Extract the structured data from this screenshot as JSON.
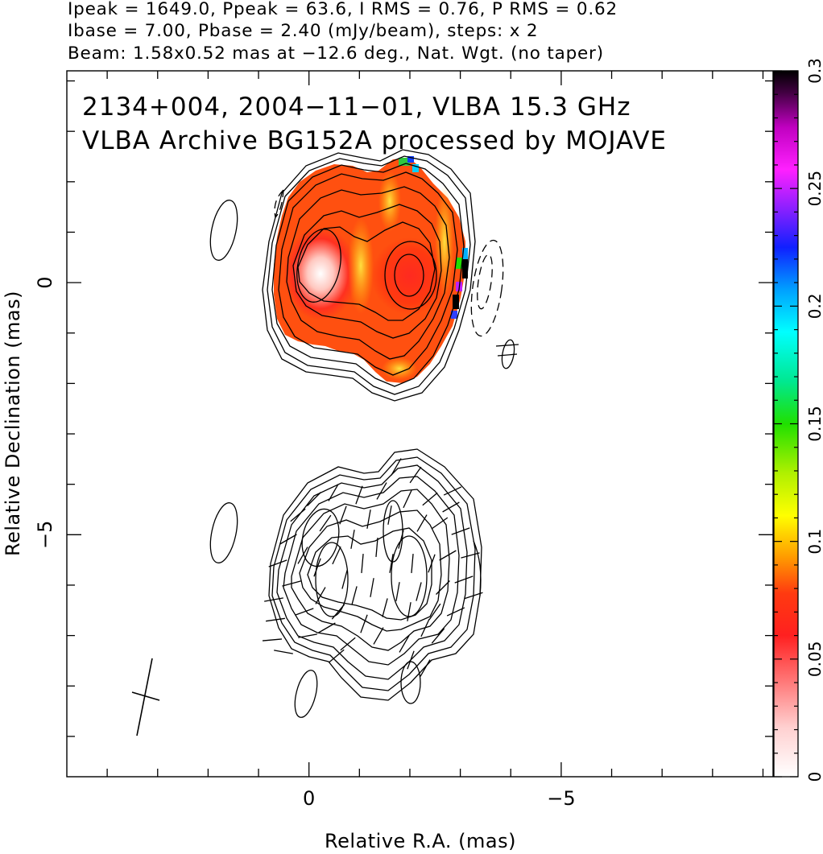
{
  "header": {
    "line1": "Ipeak = 1649.0, Ppeak = 63.6, I RMS = 0.76, P RMS = 0.62",
    "line2": "Ibase = 7.00, Pbase = 2.40 (mJy/beam), steps: x 2",
    "line3": "Beam: 1.58x0.52 mas at −12.6 deg., Nat. Wgt. (no taper)"
  },
  "chart_data": {
    "type": "heatmap",
    "title_line1": "2134+004, 2004−11−01, VLBA 15.3 GHz",
    "title_line2": "VLBA Archive BG152A processed by MOJAVE",
    "xlabel": "Relative R.A. (mas)",
    "ylabel": "Relative Declination (mas)",
    "xlim": [
      4.8,
      -9.2
    ],
    "ylim": [
      -9.8,
      4.2
    ],
    "x_ticks": [
      0,
      -5
    ],
    "x_tick_labels": [
      "0",
      "−5"
    ],
    "y_ticks": [
      0,
      -5
    ],
    "y_tick_labels": [
      "0",
      "−5"
    ],
    "colorbar": {
      "range": [
        0,
        0.3
      ],
      "ticks": [
        0,
        0.05,
        0.1,
        0.15,
        0.2,
        0.25,
        0.3
      ],
      "tick_labels": [
        "0",
        "0.05",
        "0.1",
        "0.15",
        "0.2",
        "0.25",
        "0.3"
      ]
    },
    "panels": [
      {
        "name": "Stokes I contours with fractional polarization color",
        "y_offset": 0
      },
      {
        "name": "Stokes I contours with polarization vectors",
        "y_offset": -5
      }
    ],
    "peaks": [
      {
        "x": 0.3,
        "y": 0.5
      },
      {
        "x": -2.0,
        "y": 0.0
      }
    ],
    "beam": {
      "major_mas": 1.58,
      "minor_mas": 0.52,
      "pa_deg": -12.6
    },
    "grid": false,
    "legend": "none"
  }
}
